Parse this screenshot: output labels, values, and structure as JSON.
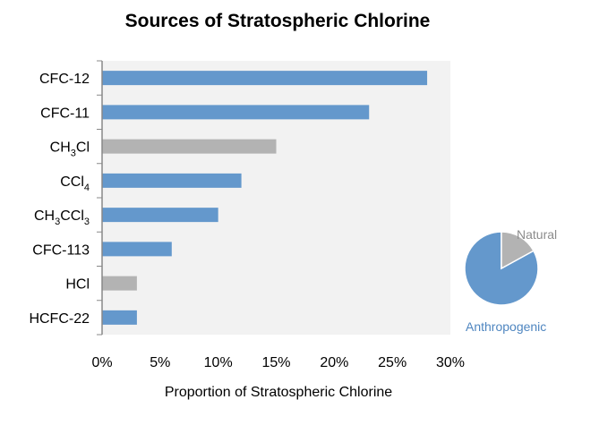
{
  "chart_data": [
    {
      "type": "bar",
      "orientation": "horizontal",
      "title": "Sources of Stratospheric Chlorine",
      "xlabel": "Proportion of Stratospheric Chlorine",
      "ylabel": "",
      "xlim": [
        0,
        30
      ],
      "xticks": [
        "0%",
        "5%",
        "10%",
        "15%",
        "20%",
        "25%",
        "30%"
      ],
      "grid": false,
      "categories": [
        {
          "base": "CFC-12",
          "sub1": "",
          "mid": "",
          "sub2": "",
          "value": 28,
          "group": "anthropogenic"
        },
        {
          "base": "CFC-11",
          "sub1": "",
          "mid": "",
          "sub2": "",
          "value": 23,
          "group": "anthropogenic"
        },
        {
          "base": "CH",
          "sub1": "3",
          "mid": "Cl",
          "sub2": "",
          "value": 15,
          "group": "natural"
        },
        {
          "base": "CCl",
          "sub1": "4",
          "mid": "",
          "sub2": "",
          "value": 12,
          "group": "anthropogenic"
        },
        {
          "base": "CH",
          "sub1": "3",
          "mid": "CCl",
          "sub2": "3",
          "value": 10,
          "group": "anthropogenic"
        },
        {
          "base": "CFC-113",
          "sub1": "",
          "mid": "",
          "sub2": "",
          "value": 6,
          "group": "anthropogenic"
        },
        {
          "base": "HCl",
          "sub1": "",
          "mid": "",
          "sub2": "",
          "value": 3,
          "group": "natural"
        },
        {
          "base": "HCFC-22",
          "sub1": "",
          "mid": "",
          "sub2": "",
          "value": 3,
          "group": "anthropogenic"
        }
      ],
      "colors": {
        "anthropogenic": "#6498CC",
        "natural": "#B3B3B3",
        "plot_background": "#F2F2F2",
        "axis": "#888888"
      }
    },
    {
      "type": "pie",
      "slices": [
        {
          "label": "Anthropogenic",
          "value": 83,
          "color": "#6498CC"
        },
        {
          "label": "Natural",
          "value": 17,
          "color": "#B3B3B3"
        }
      ]
    }
  ]
}
